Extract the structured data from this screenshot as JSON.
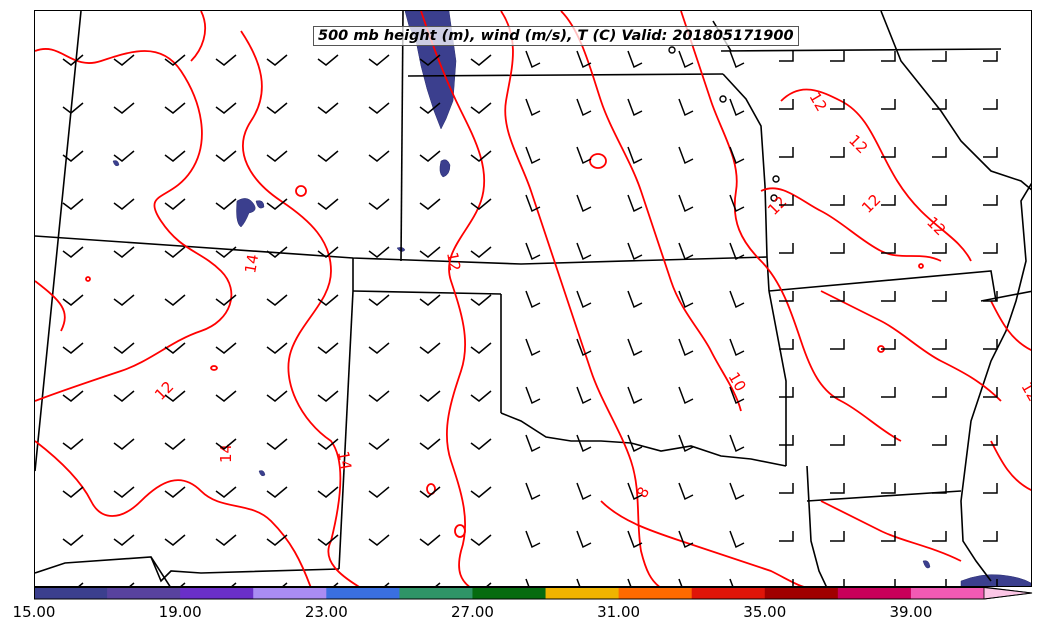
{
  "title": "500 mb height (m), wind (m/s), T (C) Valid: 201805171900",
  "colorbar": {
    "colors": [
      "#3b3f8e",
      "#58429e",
      "#6a2fc8",
      "#a98cf3",
      "#3a6fe0",
      "#2f9467",
      "#066b10",
      "#f0b400",
      "#ff6a00",
      "#e01508",
      "#a00000",
      "#c8005a",
      "#f25ab4",
      "#fcc6e6"
    ],
    "tick_labels": [
      "15.00",
      "19.00",
      "23.00",
      "27.00",
      "31.00",
      "35.00",
      "39.00"
    ]
  },
  "contour_labels": [
    {
      "text": "14"
    },
    {
      "text": "12"
    },
    {
      "text": "12"
    },
    {
      "text": "14"
    },
    {
      "text": "14"
    },
    {
      "text": "12"
    },
    {
      "text": "10"
    },
    {
      "text": "8"
    },
    {
      "text": "12"
    },
    {
      "text": "12"
    },
    {
      "text": "12"
    },
    {
      "text": "12"
    },
    {
      "text": "12"
    },
    {
      "text": "12"
    }
  ],
  "colors": {
    "temperature_contour": "#ff0000",
    "state_border": "#000000",
    "shading": "#3b3f8e"
  }
}
